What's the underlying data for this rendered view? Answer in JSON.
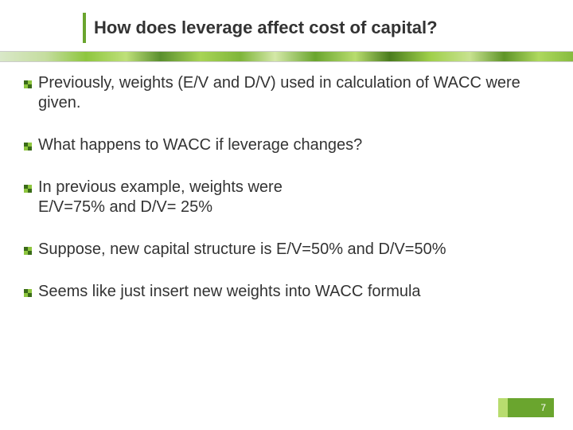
{
  "title": "How does leverage affect cost of capital?",
  "bullets": [
    "Previously, weights (E/V and D/V) used in calculation of WACC were given.",
    "What happens to WACC if leverage changes?",
    "In previous example, weights were\nE/V=75% and D/V= 25%",
    "Suppose, new capital structure is E/V=50% and D/V=50%",
    "Seems like just insert new weights into WACC formula"
  ],
  "page_number": "7",
  "colors": {
    "accent_green": "#6aa52e",
    "dark_green": "#3a6b18",
    "text": "#333333",
    "background": "#ffffff"
  },
  "bullet_icon": {
    "width": 10,
    "height": 10,
    "dark": "#3a6b18",
    "light": "#8ec63f"
  }
}
